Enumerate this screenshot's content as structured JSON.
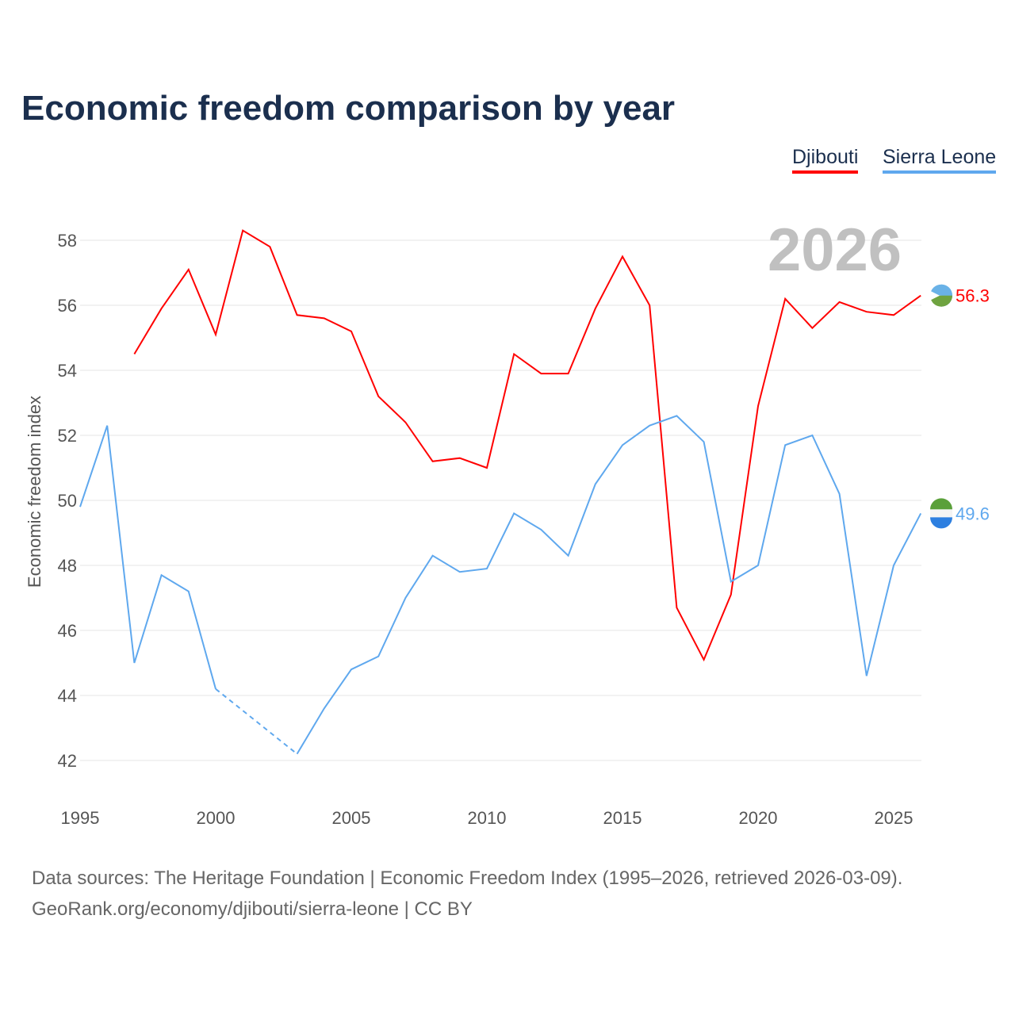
{
  "chart_data": {
    "type": "line",
    "title": "Economic freedom comparison by year",
    "ylabel": "Economic freedom index",
    "xlabel": "",
    "ylim": [
      41,
      59
    ],
    "xlim": [
      1995,
      2026
    ],
    "yticks": [
      42,
      44,
      46,
      48,
      50,
      52,
      54,
      56,
      58
    ],
    "xticks": [
      1995,
      2000,
      2005,
      2010,
      2015,
      2020,
      2025
    ],
    "grid": true,
    "legend": "top-right",
    "current_year": "2026",
    "x": [
      1995,
      1996,
      1997,
      1998,
      1999,
      2000,
      2001,
      2002,
      2003,
      2004,
      2005,
      2006,
      2007,
      2008,
      2009,
      2010,
      2011,
      2012,
      2013,
      2014,
      2015,
      2016,
      2017,
      2018,
      2019,
      2020,
      2021,
      2022,
      2023,
      2024,
      2025,
      2026
    ],
    "series": [
      {
        "name": "Djibouti",
        "color": "#ff0000",
        "end_label": "56.3",
        "values": [
          null,
          null,
          54.5,
          55.9,
          57.1,
          55.1,
          58.3,
          57.8,
          55.7,
          55.6,
          55.2,
          53.2,
          52.4,
          51.2,
          51.3,
          51.0,
          54.5,
          53.9,
          53.9,
          55.9,
          57.5,
          56.0,
          46.7,
          45.1,
          47.1,
          52.9,
          56.2,
          55.3,
          56.1,
          55.8,
          55.7,
          56.3
        ]
      },
      {
        "name": "Sierra Leone",
        "color": "#5fa8ee",
        "end_label": "49.6",
        "values": [
          49.8,
          52.3,
          45.0,
          47.7,
          47.2,
          44.2,
          null,
          null,
          42.2,
          43.6,
          44.8,
          45.2,
          47.0,
          48.3,
          47.8,
          47.9,
          49.6,
          49.1,
          48.3,
          50.5,
          51.7,
          52.3,
          52.6,
          51.8,
          47.5,
          48.0,
          51.7,
          52.0,
          50.2,
          44.6,
          48.0,
          49.6
        ]
      }
    ]
  },
  "footer": {
    "source": "Data sources: The Heritage Foundation | Economic Freedom Index (1995–2026, retrieved 2026-03-09).",
    "link": "GeoRank.org/economy/djibouti/sierra-leone | CC BY"
  }
}
